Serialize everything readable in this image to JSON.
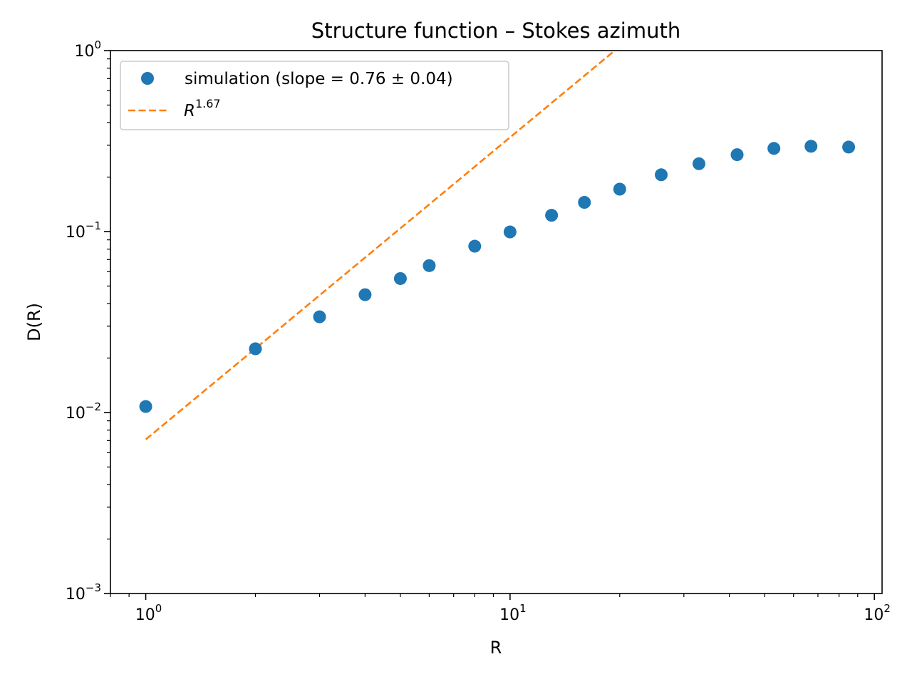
{
  "chart_data": {
    "type": "scatter",
    "title": "Structure function – Stokes azimuth",
    "xlabel": "R",
    "ylabel": "D(R)",
    "xscale": "log",
    "yscale": "log",
    "xlim": [
      0.8,
      105
    ],
    "ylim": [
      0.001,
      1
    ],
    "grid": false,
    "legend_placement": "upper-left",
    "x_tick_labels": [
      {
        "base": "10",
        "exp": "0"
      },
      {
        "base": "10",
        "exp": "1"
      },
      {
        "base": "10",
        "exp": "2"
      }
    ],
    "y_tick_labels": [
      {
        "base": "10",
        "exp": "−3"
      },
      {
        "base": "10",
        "exp": "−2"
      },
      {
        "base": "10",
        "exp": "−1"
      },
      {
        "base": "10",
        "exp": "0"
      }
    ],
    "x_major_ticks": [
      1,
      10,
      100
    ],
    "y_major_ticks": [
      0.001,
      0.01,
      0.1,
      1
    ],
    "series": [
      {
        "name": "simulation (slope = 0.76 ± 0.04)",
        "kind": "markers",
        "color": "#1f77b4",
        "x": [
          1,
          2,
          3,
          4,
          5,
          6,
          8,
          10,
          13,
          16,
          20,
          26,
          33,
          42,
          53,
          67,
          85
        ],
        "y": [
          0.0108,
          0.0225,
          0.0338,
          0.0448,
          0.055,
          0.0648,
          0.083,
          0.0995,
          0.123,
          0.145,
          0.1715,
          0.206,
          0.237,
          0.266,
          0.288,
          0.296,
          0.293
        ]
      },
      {
        "name_base": "R",
        "name_exp": "1.67",
        "kind": "dashed-line",
        "color": "#ff7f0e",
        "x": [
          1,
          19.38
        ],
        "y": [
          0.0071,
          1.0
        ]
      }
    ]
  }
}
